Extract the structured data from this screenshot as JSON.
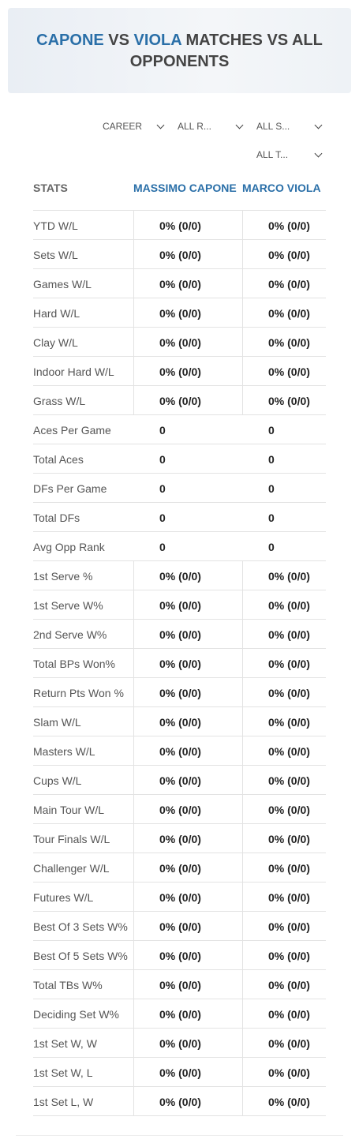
{
  "header": {
    "player1": "CAPONE",
    "vs": "VS",
    "player2": "VIOLA",
    "rest": "MATCHES VS ALL OPPONENTS"
  },
  "filters": [
    "CAREER",
    "ALL R...",
    "ALL S...",
    "ALL T..."
  ],
  "table": {
    "columns": [
      "STATS",
      "MASSIMO CAPONE",
      "MARCO VIOLA"
    ],
    "rows": [
      [
        "YTD W/L",
        "0% (0/0)",
        "0% (0/0)"
      ],
      [
        "Sets W/L",
        "0% (0/0)",
        "0% (0/0)"
      ],
      [
        "Games W/L",
        "0% (0/0)",
        "0% (0/0)"
      ],
      [
        "Hard W/L",
        "0% (0/0)",
        "0% (0/0)"
      ],
      [
        "Clay W/L",
        "0% (0/0)",
        "0% (0/0)"
      ],
      [
        "Indoor Hard W/L",
        "0% (0/0)",
        "0% (0/0)"
      ],
      [
        "Grass W/L",
        "0% (0/0)",
        "0% (0/0)"
      ],
      [
        "Aces Per Game",
        "0",
        "0"
      ],
      [
        "Total Aces",
        "0",
        "0"
      ],
      [
        "DFs Per Game",
        "0",
        "0"
      ],
      [
        "Total DFs",
        "0",
        "0"
      ],
      [
        "Avg Opp Rank",
        "0",
        "0"
      ],
      [
        "1st Serve %",
        "0% (0/0)",
        "0% (0/0)"
      ],
      [
        "1st Serve W%",
        "0% (0/0)",
        "0% (0/0)"
      ],
      [
        "2nd Serve W%",
        "0% (0/0)",
        "0% (0/0)"
      ],
      [
        "Total BPs Won%",
        "0% (0/0)",
        "0% (0/0)"
      ],
      [
        "Return Pts Won %",
        "0% (0/0)",
        "0% (0/0)"
      ],
      [
        "Slam W/L",
        "0% (0/0)",
        "0% (0/0)"
      ],
      [
        "Masters W/L",
        "0% (0/0)",
        "0% (0/0)"
      ],
      [
        "Cups W/L",
        "0% (0/0)",
        "0% (0/0)"
      ],
      [
        "Main Tour W/L",
        "0% (0/0)",
        "0% (0/0)"
      ],
      [
        "Tour Finals W/L",
        "0% (0/0)",
        "0% (0/0)"
      ],
      [
        "Challenger W/L",
        "0% (0/0)",
        "0% (0/0)"
      ],
      [
        "Futures W/L",
        "0% (0/0)",
        "0% (0/0)"
      ],
      [
        "Best Of 3 Sets W%",
        "0% (0/0)",
        "0% (0/0)"
      ],
      [
        "Best Of 5 Sets W%",
        "0% (0/0)",
        "0% (0/0)"
      ],
      [
        "Total TBs W%",
        "0% (0/0)",
        "0% (0/0)"
      ],
      [
        "Deciding Set W%",
        "0% (0/0)",
        "0% (0/0)"
      ],
      [
        "1st Set W, W",
        "0% (0/0)",
        "0% (0/0)"
      ],
      [
        "1st Set W, L",
        "0% (0/0)",
        "0% (0/0)"
      ],
      [
        "1st Set L, W",
        "0% (0/0)",
        "0% (0/0)"
      ]
    ]
  }
}
